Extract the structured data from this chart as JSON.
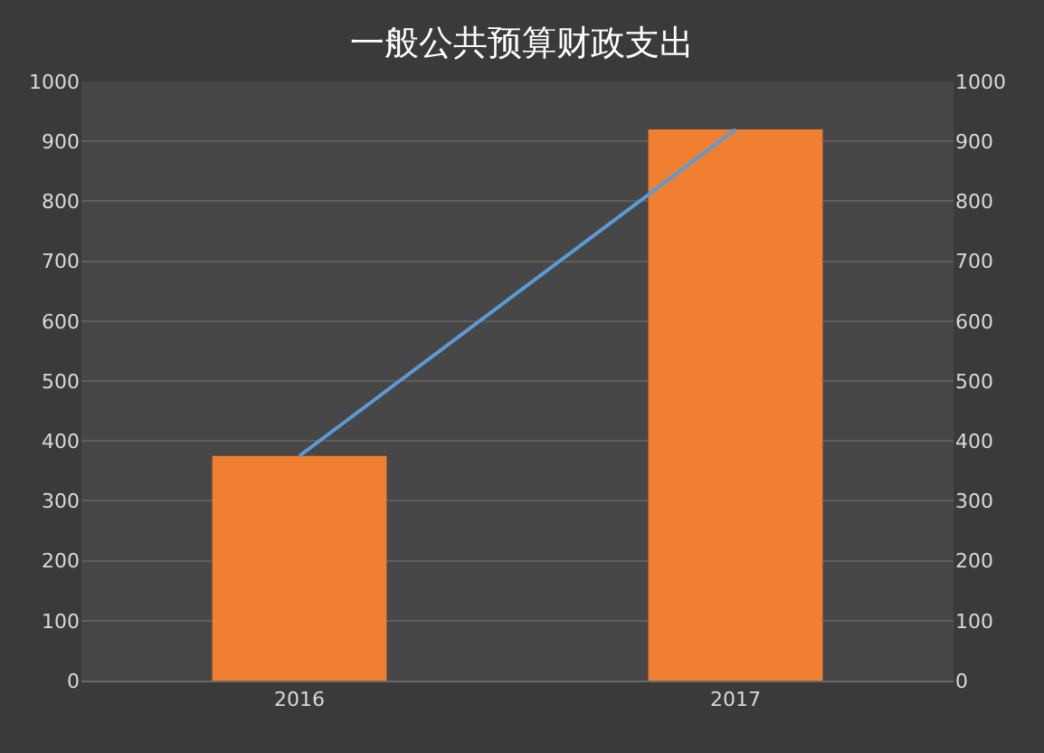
{
  "chart_data": {
    "type": "bar",
    "title": "一般公共预算财政支出",
    "categories": [
      "2016",
      "2017"
    ],
    "series": [
      {
        "color": "#f07f32",
        "values": [
          375,
          920
        ]
      },
      {
        "type": "line",
        "axis": "y2",
        "color": "#5b9bd5",
        "values": [
          375,
          920
        ]
      }
    ],
    "ylim": [
      0,
      1000
    ],
    "yticks": [
      0,
      100,
      200,
      300,
      400,
      500,
      600,
      700,
      800,
      900,
      1000
    ],
    "y2lim": [
      0,
      1000
    ],
    "y2ticks": [
      0,
      100,
      200,
      300,
      400,
      500,
      600,
      700,
      800,
      900,
      1000
    ],
    "grid": "y",
    "marker": "none",
    "line_style": "solid"
  }
}
